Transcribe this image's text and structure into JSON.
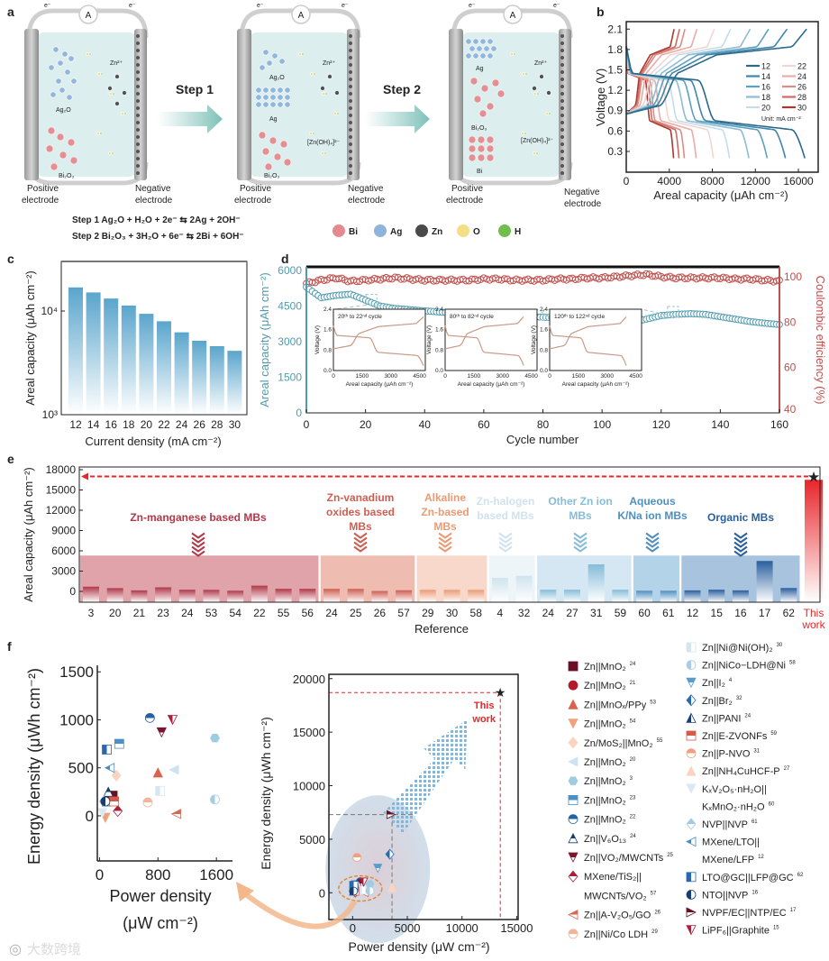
{
  "panel_labels": {
    "a": "a",
    "b": "b",
    "c": "c",
    "d": "d",
    "e": "e",
    "f": "f"
  },
  "schematic": {
    "ammeter": "A",
    "electron": "e⁻",
    "positive": [
      "Positive",
      "electrode"
    ],
    "negative": [
      "Negative",
      "electrode"
    ],
    "steps": [
      "Step 1",
      "Step 2"
    ],
    "species": {
      "ag2o": "Ag₂O",
      "bi2o3": "Bi₂O₃",
      "zn": "Zn²⁺",
      "ag": "Ag",
      "bi": "Bi",
      "zincate": "[Zn(OH)₄]²⁻"
    },
    "equations": [
      {
        "text": "Step 1  Ag₂O + H₂O + 2e⁻ ⇆ 2Ag + 2OH⁻",
        "color": "#8bb8d0"
      },
      {
        "text": "Step 2  Bi₂O₃ + 3H₂O + 6e⁻ ⇆ 2Bi + 6OH⁻",
        "color": "#e88a86"
      }
    ],
    "legend": [
      {
        "label": "Bi",
        "color": "#e58a8f"
      },
      {
        "label": "Ag",
        "color": "#8fb4dc"
      },
      {
        "label": "Zn",
        "color": "#4a4a4a"
      },
      {
        "label": "O",
        "color": "#f5df86"
      },
      {
        "label": "H",
        "color": "#6fbf4e"
      }
    ]
  },
  "chart_data": [
    {
      "id": "b",
      "type": "line",
      "xlabel": "Areal capacity (μAh cm⁻²)",
      "ylabel": "Voltage (V)",
      "xlim": [
        0,
        18000
      ],
      "ylim": [
        0,
        2.2
      ],
      "xticks": [
        "0",
        "4000",
        "8000",
        "12000",
        "16000"
      ],
      "xtick_values": [
        0,
        4000,
        8000,
        12000,
        16000
      ],
      "yticks": [
        "0.3",
        "0.6",
        "0.9",
        "1.2",
        "1.5",
        "1.8",
        "2.1"
      ],
      "ytick_values": [
        0.3,
        0.6,
        0.9,
        1.2,
        1.5,
        1.8,
        2.1
      ],
      "legend_title": "Unit: mA cm⁻²",
      "legend_position": "right",
      "series": [
        {
          "name": "12",
          "capacity": 16600,
          "color": "#2b6a8c"
        },
        {
          "name": "14",
          "capacity": 14800,
          "color": "#3f86a8"
        },
        {
          "name": "16",
          "capacity": 13100,
          "color": "#5d9fc0"
        },
        {
          "name": "18",
          "capacity": 11400,
          "color": "#8dbcd4"
        },
        {
          "name": "20",
          "capacity": 9600,
          "color": "#c4dde8"
        },
        {
          "name": "22",
          "capacity": 8100,
          "color": "#f2d5d2"
        },
        {
          "name": "24",
          "capacity": 6500,
          "color": "#e9aca6"
        },
        {
          "name": "26",
          "capacity": 5400,
          "color": "#de8d86"
        },
        {
          "name": "28",
          "capacity": 4900,
          "color": "#cc6b62"
        },
        {
          "name": "30",
          "capacity": 4400,
          "color": "#a8392f"
        }
      ]
    },
    {
      "id": "c",
      "type": "bar",
      "xlabel": "Current density (mA cm⁻²)",
      "ylabel": "Areal capacity (μAh cm⁻²)",
      "yscale": "log",
      "ylim": [
        1000,
        30000
      ],
      "yticks": [
        "10³",
        "10⁴"
      ],
      "ytick_values": [
        1000,
        10000
      ],
      "categories": [
        "12",
        "14",
        "16",
        "18",
        "20",
        "22",
        "24",
        "26",
        "28",
        "30"
      ],
      "values": [
        16900,
        15100,
        13200,
        11300,
        9400,
        7960,
        6230,
        5170,
        4580,
        4130
      ],
      "color": "#5aa5cc"
    },
    {
      "id": "d",
      "type": "scatter",
      "xlabel": "Cycle number",
      "ylabel": "Areal capacity (μAh cm⁻²)",
      "ylabel_right": "Coulombic efficiency (%)",
      "xlim": [
        0,
        160
      ],
      "ylim": [
        0,
        6150
      ],
      "ylim_right": [
        40,
        104.4
      ],
      "xticks": [
        "0",
        "20",
        "40",
        "60",
        "80",
        "100",
        "120",
        "140",
        "160"
      ],
      "yticks": [
        "0",
        "1500",
        "3000",
        "4500",
        "6000"
      ],
      "yticks_right": [
        "40",
        "60",
        "80",
        "100"
      ],
      "sample_step": 5,
      "capacity": [
        5300,
        4850,
        4950,
        5000,
        4750,
        4500,
        4400,
        4350,
        4300,
        4250,
        4200,
        4150,
        4120,
        4100,
        4080,
        4050,
        4030,
        4000,
        3950,
        3900,
        3870,
        3850,
        3800,
        3950,
        4100,
        4150,
        4180,
        4150,
        4050,
        3950,
        3850,
        3780,
        3720
      ],
      "efficiency": [
        97,
        98.5,
        99.5,
        98,
        98.5,
        99,
        99.5,
        99,
        98.5,
        98.5,
        98.5,
        98.5,
        99,
        99,
        98.5,
        98.5,
        98.5,
        99,
        99,
        99.5,
        99.5,
        100,
        100.5,
        101,
        100,
        99.5,
        99.5,
        99.5,
        99.5,
        99,
        99,
        98.5,
        98
      ],
      "capacity_color": "#4f9bb0",
      "efficiency_color": "#c0504d",
      "insets": [
        {
          "title": "20ᵗʰ to 22ⁿᵈ cycle",
          "capacity": 4700,
          "cycle": 22
        },
        {
          "title": "80ᵗʰ to 82ⁿᵈ cycle",
          "capacity": 4100,
          "cycle": 82
        },
        {
          "title": "120ᵗʰ to 122ⁿᵈ cycle",
          "capacity": 4000,
          "cycle": 124
        }
      ],
      "inset_xlabel": "Areal capacity (μAh cm⁻²)",
      "inset_ylabel": "Voltage (V)",
      "inset_xticks": [
        "0",
        "1500",
        "3000",
        "4500"
      ],
      "inset_yticks": [
        "0.0",
        "0.8",
        "1.6",
        "2.4"
      ]
    },
    {
      "id": "e",
      "type": "bar",
      "xlabel": "Reference",
      "ylabel": "Areal capacity (μAh cm⁻²)",
      "ylim": [
        -1600,
        18400
      ],
      "yticks": [
        "0",
        "3000",
        "6000",
        "9000",
        "12000",
        "15000",
        "18000"
      ],
      "ytick_values": [
        0,
        3000,
        6000,
        9000,
        12000,
        15000,
        18000
      ],
      "groups": [
        {
          "name": "Zn-manganese based MBs",
          "lines": [
            "Zn-manganese based MBs"
          ],
          "color": "#b0394a",
          "bg": "#e0a3aa",
          "refs": [
            "3",
            "20",
            "21",
            "23",
            "24",
            "53",
            "54",
            "22",
            "55",
            "56"
          ],
          "values": [
            700,
            480,
            150,
            600,
            250,
            230,
            100,
            850,
            380,
            380
          ]
        },
        {
          "name": "Zn-vanadium oxides based MBs",
          "lines": [
            "Zn-vanadium",
            "oxides based",
            "MBs"
          ],
          "color": "#cf5f52",
          "bg": "#efbcb2",
          "refs": [
            "24",
            "25",
            "26",
            "57"
          ],
          "values": [
            370,
            370,
            60,
            170
          ]
        },
        {
          "name": "Alkaline Zn-based MBs",
          "lines": [
            "Alkaline",
            "Zn-based",
            "MBs"
          ],
          "color": "#eb9a74",
          "bg": "#f8d8ca",
          "refs": [
            "29",
            "30",
            "58"
          ],
          "values": [
            230,
            230,
            230
          ]
        },
        {
          "name": "Zn-halogen based MBs",
          "lines": [
            "Zn-halogen",
            "based MBs"
          ],
          "color": "#cfe3ee",
          "bg": "#eef5f9",
          "refs": [
            "4",
            "32"
          ],
          "values": [
            2000,
            2300
          ]
        },
        {
          "name": "Other Zn ion MBs",
          "lines": [
            "Other Zn ion",
            "MBs"
          ],
          "color": "#86bcd9",
          "bg": "#d5e7f2",
          "refs": [
            "24",
            "27",
            "31",
            "59"
          ],
          "values": [
            250,
            250,
            4000,
            250
          ]
        },
        {
          "name": "Aqueous K/Na ion MBs",
          "lines": [
            "Aqueous",
            "K/Na ion MBs"
          ],
          "color": "#4f8fc0",
          "bg": "#b3d3e8",
          "refs": [
            "60",
            "61"
          ],
          "values": [
            100,
            100
          ]
        },
        {
          "name": "Organic MBs",
          "lines": [
            "Organic MBs"
          ],
          "color": "#2a5f9e",
          "bg": "#a8c3de",
          "refs": [
            "12",
            "15",
            "16",
            "17",
            "62"
          ],
          "values": [
            150,
            250,
            150,
            4500,
            500
          ]
        }
      ],
      "this_work": {
        "label": [
          "This",
          "work"
        ],
        "value": 16500,
        "marker": 17000,
        "color": "#e8262a"
      }
    },
    {
      "id": "f",
      "type": "scatter",
      "xlabel": "Power density (μW cm⁻²)",
      "ylabel": "Energy density (μWh cm⁻²)",
      "main": {
        "xlim": [
          -2170,
          15130
        ],
        "ylim": [
          -2500,
          20400
        ],
        "xticks": [
          "0",
          "5000",
          "10000",
          "15000"
        ],
        "xtick_values": [
          0,
          5000,
          10000,
          15000
        ],
        "yticks": [
          "0",
          "5000",
          "10000",
          "15000",
          "20000"
        ],
        "ytick_values": [
          0,
          5000,
          10000,
          15000,
          20000
        ]
      },
      "inset": {
        "xlim": [
          -30,
          1820
        ],
        "ylim": [
          -470,
          1690
        ],
        "xticks": [
          "0",
          "800",
          "1600"
        ],
        "xtick_values": [
          0,
          800,
          1600
        ],
        "yticks": [
          "0",
          "500",
          "1000",
          "1500"
        ],
        "ytick_values": [
          0,
          500,
          1000,
          1500
        ],
        "xlabel_lines": [
          "Power density",
          "(μW cm⁻²)"
        ]
      },
      "this_work": {
        "label": [
          "This",
          "work"
        ],
        "power": 13500,
        "energy": 18700,
        "color": "#e8262a"
      },
      "points": [
        {
          "label": [
            "Zn||MnO₂"
          ],
          "ref": "24",
          "shape": "square",
          "color": "#6b0f24",
          "style": "full",
          "power": 180,
          "energy": 210
        },
        {
          "label": [
            "Zn||MnO₂"
          ],
          "ref": "21",
          "shape": "circle",
          "color": "#b3192b",
          "style": "full",
          "power": 120,
          "energy": 180
        },
        {
          "label": [
            "Zn||MnOₓ/PPy"
          ],
          "ref": "53",
          "shape": "tri-up",
          "color": "#d9634f",
          "style": "full",
          "power": 800,
          "energy": 450
        },
        {
          "label": [
            "Zn||MnO₂"
          ],
          "ref": "54",
          "shape": "tri-down",
          "color": "#f2a27a",
          "style": "full",
          "power": 80,
          "energy": -20
        },
        {
          "label": [
            "Zn/MoS₂||MnO₂"
          ],
          "ref": "55",
          "shape": "diamond",
          "color": "#fbd4c0",
          "style": "full",
          "power": 230,
          "energy": 420
        },
        {
          "label": [
            "Zn||MnO₂"
          ],
          "ref": "20",
          "shape": "tri-left",
          "color": "#cfe3ef",
          "style": "full",
          "power": 1020,
          "energy": 480
        },
        {
          "label": [
            "Zn||MnO₂"
          ],
          "ref": "3",
          "shape": "hexagon",
          "color": "#9fcbe3",
          "style": "full",
          "power": 1580,
          "energy": 810
        },
        {
          "label": [
            "Zn||MnO₂"
          ],
          "ref": "23",
          "shape": "square",
          "color": "#4a90c8",
          "style": "half-top",
          "power": 270,
          "energy": 750
        },
        {
          "label": [
            "Zn||MnO₂"
          ],
          "ref": "22",
          "shape": "circle",
          "color": "#2362a6",
          "style": "half-top",
          "power": 690,
          "energy": 1020
        },
        {
          "label": [
            "Zn||V₆O₁₃"
          ],
          "ref": "24",
          "shape": "tri-up",
          "color": "#163e73",
          "style": "half-top",
          "power": 120,
          "energy": 250
        },
        {
          "label": [
            "Zn||VO₂/MWCNTs"
          ],
          "ref": "25",
          "shape": "tri-down",
          "color": "#7a1530",
          "style": "half-top",
          "power": 850,
          "energy": 870
        },
        {
          "label": [
            "MXene/TiS₂||",
            "MWCNTs/VO₂"
          ],
          "ref": "57",
          "shape": "diamond",
          "color": "#a8203a",
          "style": "half-top",
          "power": 250,
          "energy": 50
        },
        {
          "label": [
            "Zn||A-V₂O₅/GO"
          ],
          "ref": "26",
          "shape": "tri-left",
          "color": "#d46a55",
          "style": "half-top",
          "power": 1050,
          "energy": 20
        },
        {
          "label": [
            "Zn||Ni/Co LDH"
          ],
          "ref": "29",
          "shape": "circle",
          "color": "#f4b49a",
          "style": "half-top",
          "power": 660,
          "energy": 140
        },
        {
          "label": [
            "Zn||Ni@Ni(OH)₂"
          ],
          "ref": "30",
          "shape": "square",
          "color": "#d6e6f0",
          "style": "half-left",
          "power": 830,
          "energy": 260
        },
        {
          "label": [
            "Zn||NiCo−LDH@Ni"
          ],
          "ref": "58",
          "shape": "circle",
          "color": "#a7cde3",
          "style": "half-left",
          "power": 1580,
          "energy": 170
        },
        {
          "label": [
            "Zn||I₂"
          ],
          "ref": "4",
          "shape": "tri-down",
          "color": "#5b9ccc",
          "style": "half-top",
          "power": 2300,
          "energy": 2300
        },
        {
          "label": [
            "Zn||Br₂"
          ],
          "ref": "32",
          "shape": "diamond",
          "color": "#2a67ad",
          "style": "half-left",
          "power": 3400,
          "energy": 3600
        },
        {
          "label": [
            "Zn||PANI"
          ],
          "ref": "24",
          "shape": "tri-up",
          "color": "#163e73",
          "style": "half-left",
          "power": 100,
          "energy": 150
        },
        {
          "label": [
            "Zn||E-ZVONFs"
          ],
          "ref": "59",
          "shape": "square",
          "color": "#d45a4a",
          "style": "half-top",
          "power": 200,
          "energy": 150
        },
        {
          "label": [
            "Zn||P-NVO"
          ],
          "ref": "31",
          "shape": "circle",
          "color": "#f0a080",
          "style": "half-top",
          "power": 400,
          "energy": 3300
        },
        {
          "label": [
            "Zn||NH₄CuHCF-P"
          ],
          "ref": "27",
          "shape": "tri-up",
          "color": "#fbd4c0",
          "style": "full",
          "power": 3600,
          "energy": 500
        },
        {
          "label": [
            "KₓV₂O₅·nH₂O||",
            "KₓMnO₂·nH₂O"
          ],
          "ref": "60",
          "shape": "tri-down",
          "color": "#dbe9f2",
          "style": "full",
          "power": 40,
          "energy": 30
        },
        {
          "label": [
            "NVP||NVP"
          ],
          "ref": "61",
          "shape": "diamond",
          "color": "#a3cae3",
          "style": "half-top",
          "power": 60,
          "energy": 150
        },
        {
          "label": [
            "MXene/LTO||",
            "MXene/LFP"
          ],
          "ref": "12",
          "shape": "tri-left",
          "color": "#4a8cc2",
          "style": "half-left",
          "power": 140,
          "energy": 500
        },
        {
          "label": [
            "LTO@GC||LFP@GC"
          ],
          "ref": "62",
          "shape": "square",
          "color": "#2a67ad",
          "style": "half-left",
          "power": 100,
          "energy": 690
        },
        {
          "label": [
            "NTO||NVP"
          ],
          "ref": "16",
          "shape": "circle",
          "color": "#163e73",
          "style": "half-left",
          "power": 80,
          "energy": 150
        },
        {
          "label": [
            "NVPF/EC||NTP/EC"
          ],
          "ref": "17",
          "shape": "tri-right",
          "color": "#6b0f24",
          "style": "half-top",
          "power": 3500,
          "energy": 7300
        },
        {
          "label": [
            "LiPF₆||Graphite"
          ],
          "ref": "15",
          "shape": "tri-down",
          "color": "#a8203a",
          "style": "half-left",
          "power": 1000,
          "energy": 1000
        }
      ]
    }
  ],
  "watermark": "大数跨境"
}
